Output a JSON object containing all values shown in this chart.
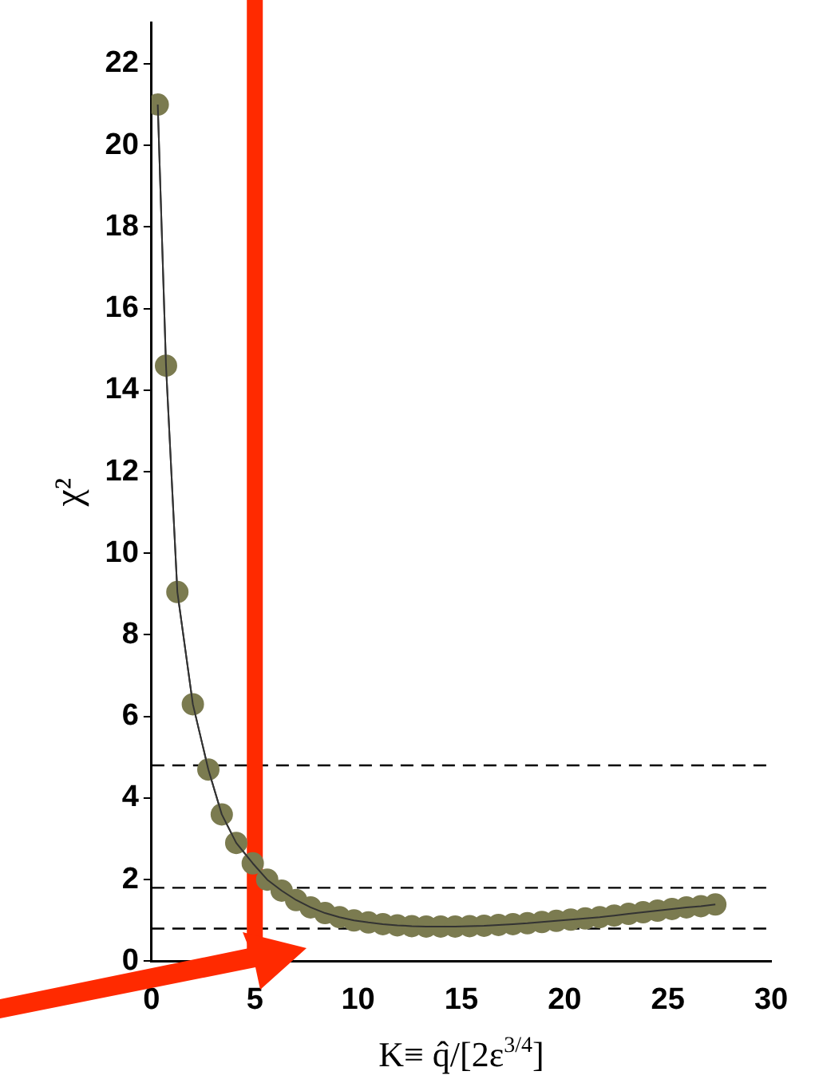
{
  "chart_data": {
    "type": "line",
    "xlabel": "K≡ q̂/[2ε$^{3/4}$]",
    "ylabel": "χ²",
    "xlim": [
      0,
      30
    ],
    "xticks": [
      0,
      5,
      10,
      15,
      20,
      25,
      30
    ],
    "ylim": [
      0,
      23
    ],
    "yticks": [
      0,
      2,
      4,
      6,
      8,
      10,
      12,
      14,
      16,
      18,
      20,
      22
    ],
    "grid": false,
    "legend": false,
    "marker": "circle",
    "line_style": "solid",
    "series": [
      {
        "color": "#7b7b50",
        "x": [
          0.3,
          0.7,
          1.25,
          2.0,
          2.75,
          3.4,
          4.1,
          4.9,
          5.6,
          6.3,
          7.0,
          7.7,
          8.4,
          9.1,
          9.8,
          10.5,
          11.2,
          11.9,
          12.6,
          13.3,
          14.0,
          14.7,
          15.4,
          16.1,
          16.8,
          17.5,
          18.2,
          18.9,
          19.6,
          20.3,
          21.0,
          21.7,
          22.4,
          23.1,
          23.8,
          24.5,
          25.2,
          25.9,
          26.6,
          27.3
        ],
        "values": [
          21.0,
          14.6,
          9.05,
          6.3,
          4.7,
          3.6,
          2.9,
          2.4,
          2.0,
          1.73,
          1.5,
          1.32,
          1.18,
          1.08,
          1.0,
          0.95,
          0.91,
          0.88,
          0.86,
          0.85,
          0.85,
          0.85,
          0.86,
          0.87,
          0.89,
          0.91,
          0.93,
          0.96,
          0.99,
          1.02,
          1.05,
          1.08,
          1.12,
          1.16,
          1.2,
          1.24,
          1.28,
          1.32,
          1.35,
          1.39
        ]
      }
    ],
    "ref_lines": [
      {
        "axis": "y",
        "value": 4.8,
        "color": "#000000",
        "line_style": "dashed"
      },
      {
        "axis": "y",
        "value": 1.8,
        "color": "#000000",
        "line_style": "dashed"
      },
      {
        "axis": "y",
        "value": 0.8,
        "color": "#000000",
        "line_style": "dashed"
      },
      {
        "axis": "x",
        "value": 5,
        "color": "#ff2a00",
        "line_style": "solid"
      }
    ]
  }
}
